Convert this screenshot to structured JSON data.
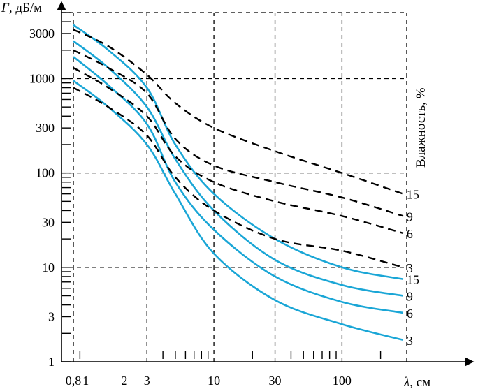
{
  "chart_data": {
    "type": "line",
    "title": "",
    "xlabel": "λ, см",
    "xlabel_symbol": "λ",
    "xlabel_unit": ", см",
    "ylabel": "Г, дБ/м",
    "ylabel_symbol": "Г",
    "ylabel_unit": ", дБ/м",
    "legend_title": "Влажность, %",
    "x_scale": "log",
    "y_scale": "log",
    "xlim": [
      0.8,
      320
    ],
    "ylim": [
      1,
      5000
    ],
    "x_ticks": [
      {
        "value": 0.8,
        "label": "0,8"
      },
      {
        "value": 1,
        "label": "1"
      },
      {
        "value": 2,
        "label": "2"
      },
      {
        "value": 3,
        "label": "3"
      },
      {
        "value": 10,
        "label": "10"
      },
      {
        "value": 30,
        "label": "30"
      },
      {
        "value": 100,
        "label": "100"
      }
    ],
    "y_ticks": [
      {
        "value": 1,
        "label": "1"
      },
      {
        "value": 3,
        "label": "3"
      },
      {
        "value": 10,
        "label": "10"
      },
      {
        "value": 30,
        "label": "30"
      },
      {
        "value": 100,
        "label": "100"
      },
      {
        "value": 300,
        "label": "300"
      },
      {
        "value": 1000,
        "label": "1000"
      },
      {
        "value": 3000,
        "label": "3000"
      }
    ],
    "grid": true,
    "series": [
      {
        "name": "15",
        "style": "solid",
        "color": "#1aa6d6",
        "x": [
          0.8,
          1.5,
          3,
          5,
          10,
          30,
          100,
          300
        ],
        "y": [
          3700,
          2000,
          800,
          200,
          60,
          20,
          10,
          7.5
        ]
      },
      {
        "name": "9",
        "style": "solid",
        "color": "#1aa6d6",
        "x": [
          0.8,
          1.5,
          3,
          5,
          10,
          30,
          100,
          300
        ],
        "y": [
          2500,
          1300,
          500,
          140,
          40,
          12,
          6.5,
          5
        ]
      },
      {
        "name": "6",
        "style": "solid",
        "color": "#1aa6d6",
        "x": [
          0.8,
          1.5,
          3,
          5,
          10,
          30,
          100,
          300
        ],
        "y": [
          1700,
          850,
          330,
          80,
          25,
          8,
          4.3,
          3.3
        ]
      },
      {
        "name": "3",
        "style": "solid",
        "color": "#1aa6d6",
        "x": [
          0.8,
          1.5,
          3,
          5,
          10,
          30,
          100,
          300
        ],
        "y": [
          950,
          500,
          200,
          60,
          14,
          4.5,
          2.5,
          1.7
        ]
      },
      {
        "name": "15",
        "style": "dashed",
        "color": "#000000",
        "x": [
          0.8,
          1.5,
          3,
          5,
          10,
          30,
          100,
          300
        ],
        "y": [
          3300,
          2200,
          1100,
          550,
          300,
          170,
          100,
          60
        ]
      },
      {
        "name": "9",
        "style": "dashed",
        "color": "#000000",
        "x": [
          0.8,
          1.5,
          3,
          5,
          10,
          30,
          100,
          300
        ],
        "y": [
          2000,
          1300,
          700,
          230,
          120,
          80,
          55,
          35
        ]
      },
      {
        "name": "6",
        "style": "dashed",
        "color": "#000000",
        "x": [
          0.8,
          1.5,
          3,
          5,
          10,
          30,
          100,
          300
        ],
        "y": [
          1300,
          800,
          400,
          150,
          80,
          50,
          35,
          23
        ]
      },
      {
        "name": "3",
        "style": "dashed",
        "color": "#000000",
        "x": [
          0.8,
          1.5,
          3,
          5,
          10,
          30,
          100,
          300
        ],
        "y": [
          800,
          500,
          250,
          90,
          40,
          20,
          15,
          10
        ]
      }
    ],
    "solid_color": "#1aa6d6",
    "dashed_color": "#000000"
  }
}
